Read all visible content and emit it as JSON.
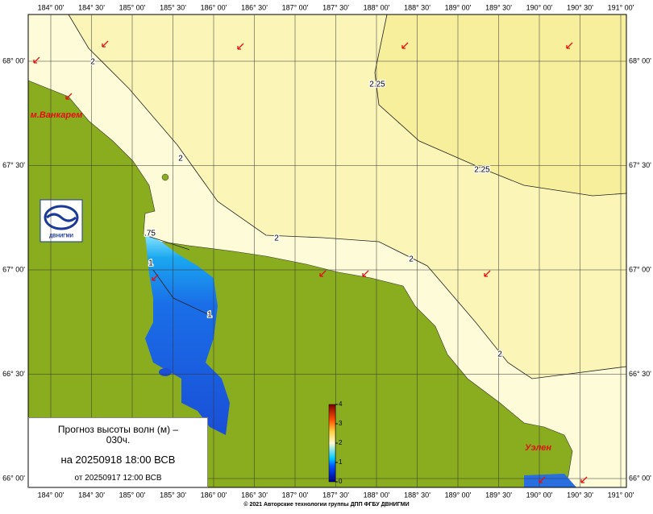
{
  "lon_labels": [
    "184° 00'",
    "184° 30'",
    "185° 00'",
    "185° 30'",
    "186° 00'",
    "186° 30'",
    "187° 00'",
    "187° 30'",
    "188° 00'",
    "188° 30'",
    "189° 00'",
    "189° 30'",
    "190° 00'",
    "190° 30'",
    "191° 00'"
  ],
  "lat_labels": [
    "68° 00'",
    "67° 30'",
    "67° 00'",
    "66° 30'",
    "66° 00'"
  ],
  "places": [
    "м.Ванкарем",
    "Уэлен"
  ],
  "contour_labels": [
    "2",
    "2.25",
    "2",
    "2.25",
    "2",
    "2",
    "2",
    ".75",
    "1",
    "1"
  ],
  "logo_text": "ДВНИГМИ",
  "colorbar": {
    "range": [
      0,
      4
    ],
    "ticks": [
      0,
      1,
      2,
      3,
      4
    ]
  },
  "info": {
    "title": "Прогноз высоты волн (м) – 030ч.",
    "forecast": "на 20250918 18:00 ВСВ",
    "issued": "от 20250917 12:00 ВСВ"
  },
  "footer": "© 2021 Авторские технологии группы ДПП ФГБУ ДВНИГМИ"
}
